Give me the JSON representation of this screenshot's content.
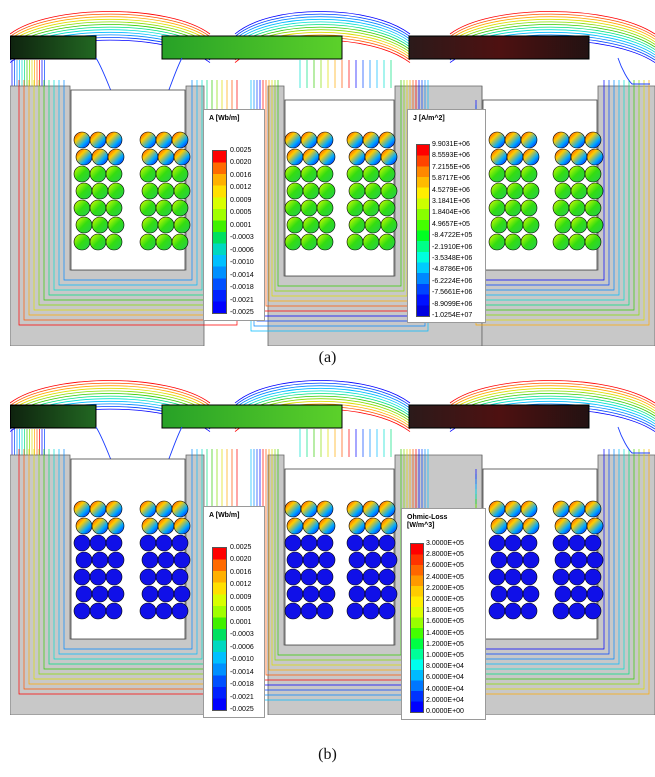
{
  "captions": [
    "(a)",
    "(b)"
  ],
  "panels": [
    {
      "potential_legend": {
        "title": "A [Wb/m]",
        "labels": [
          "0.0025",
          "0.0020",
          "0.0016",
          "0.0012",
          "0.0009",
          "0.0005",
          "0.0001",
          "-0.0003",
          "-0.0006",
          "-0.0010",
          "-0.0014",
          "-0.0018",
          "-0.0021",
          "-0.0025"
        ]
      },
      "field_legend": {
        "title": "J [A/m^2]",
        "labels": [
          "9.9031E+06",
          "8.5593E+06",
          "7.2155E+06",
          "5.8717E+06",
          "4.5279E+06",
          "3.1841E+06",
          "1.8404E+06",
          "4.9657E+05",
          "-8.4722E+05",
          "-2.1910E+06",
          "-3.5348E+06",
          "-4.8786E+06",
          "-6.2224E+06",
          "-7.5661E+06",
          "-8.9099E+06",
          "-1.0254E+07"
        ]
      }
    },
    {
      "potential_legend": {
        "title": "A [Wb/m]",
        "labels": [
          "0.0025",
          "0.0020",
          "0.0016",
          "0.0012",
          "0.0009",
          "0.0005",
          "0.0001",
          "-0.0003",
          "-0.0006",
          "-0.0010",
          "-0.0014",
          "-0.0018",
          "-0.0021",
          "-0.0025"
        ]
      },
      "field_legend": {
        "title": "Ohmic-Loss [W/m^3]",
        "labels": [
          "3.0000E+05",
          "2.8000E+05",
          "2.6000E+05",
          "2.4000E+05",
          "2.2000E+05",
          "2.0000E+05",
          "1.8000E+05",
          "1.6000E+05",
          "1.4000E+05",
          "1.2000E+05",
          "1.0000E+05",
          "8.0000E+04",
          "6.0000E+04",
          "4.0000E+04",
          "2.0000E+04",
          "0.0000E+00"
        ]
      }
    }
  ],
  "colors": {
    "steel": "#c8c8c8",
    "potential_scale": [
      "#ff0000",
      "#ff6a00",
      "#ffb000",
      "#ffe000",
      "#d8ff00",
      "#a0ff00",
      "#40f000",
      "#00e060",
      "#00d8c0",
      "#00c0ff",
      "#0090ff",
      "#0050ff",
      "#0020ff",
      "#0000ff"
    ],
    "current_scale": [
      "#ff0000",
      "#ff4400",
      "#ff8800",
      "#ffbb00",
      "#ffee00",
      "#ccff00",
      "#88ff00",
      "#44ff00",
      "#00ff22",
      "#00ff88",
      "#00ffdd",
      "#00ccff",
      "#0088ff",
      "#0044ff",
      "#0011ff",
      "#0000e0"
    ],
    "loss_scale": [
      "#ff0000",
      "#ff3300",
      "#ff6600",
      "#ff9900",
      "#ffcc00",
      "#ffee00",
      "#ddff00",
      "#99ff00",
      "#44ff00",
      "#00ff44",
      "#00ff99",
      "#00ffee",
      "#00bbff",
      "#0077ff",
      "#0033ff",
      "#0000ff"
    ]
  }
}
